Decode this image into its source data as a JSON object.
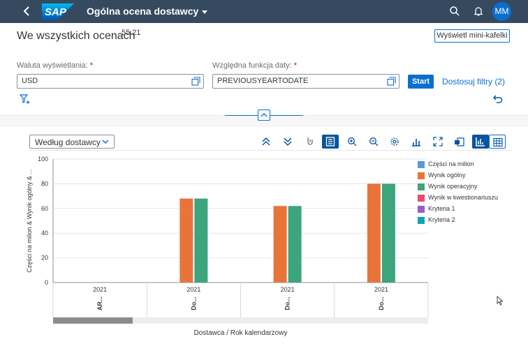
{
  "shellbar": {
    "title": "Ogólna ocena dostawcy",
    "logo_text": "SAP",
    "avatar_initials": "MM",
    "icons": [
      "back-icon",
      "search-icon",
      "bell-icon"
    ],
    "background": "#354a5f"
  },
  "header": {
    "title": "We wszystkich ocenach",
    "count": "55.21",
    "mini_tiles_button": "Wyświetl mini-kafelki"
  },
  "filters": {
    "currency": {
      "label": "Waluta wyświetlania:",
      "required_mark": "*",
      "value": "USD"
    },
    "date_function": {
      "label": "Względna funkcja daty:",
      "required_mark": "*",
      "value": "PREVIOUSYEARTODATE"
    },
    "start_button": "Start",
    "adapt_link": "Dostosuj filtry (2)"
  },
  "content": {
    "group_select": "Według dostawcy",
    "toolbar_icons": [
      "expand-all-icon",
      "collapse-all-icon",
      "drill-icon",
      "table-view-icon",
      "zoom-in-icon",
      "zoom-out-icon",
      "settings-icon",
      "chart-type-icon",
      "fullscreen-icon",
      "export-icon",
      "chart-view-icon",
      "grid-view-icon"
    ]
  },
  "chart_data": {
    "type": "bar",
    "ylabel": "Części na milion & Wynik ogólny & ...",
    "xlabel": "Dostawca / Rok kalendarzowy",
    "ylim": [
      0,
      100
    ],
    "yticks": [
      "0",
      "20",
      "40",
      "60",
      "80",
      "100"
    ],
    "grid": true,
    "legend_position": "right",
    "categories": [
      {
        "year": "2021",
        "supplier": "AR..."
      },
      {
        "year": "2021",
        "supplier": "Do..."
      },
      {
        "year": "2021",
        "supplier": "Do..."
      },
      {
        "year": "2021",
        "supplier": "Do..."
      }
    ],
    "series": [
      {
        "name": "Części na milion",
        "color": "#5899da",
        "values": [
          null,
          null,
          null,
          null
        ]
      },
      {
        "name": "Wynik ogólny",
        "color": "#e8743b",
        "values": [
          null,
          68,
          62,
          80
        ]
      },
      {
        "name": "Wynik operacyjny",
        "color": "#3ca57c",
        "values": [
          null,
          68,
          62,
          80
        ]
      },
      {
        "name": "Wynik w kwestionariuszu",
        "color": "#e84c6f",
        "values": [
          null,
          null,
          null,
          null
        ]
      },
      {
        "name": "Kryteria 1",
        "color": "#945ecf",
        "values": [
          null,
          null,
          null,
          null
        ]
      },
      {
        "name": "Kryteria 2",
        "color": "#13a4b4",
        "values": [
          null,
          null,
          null,
          null
        ]
      }
    ]
  }
}
